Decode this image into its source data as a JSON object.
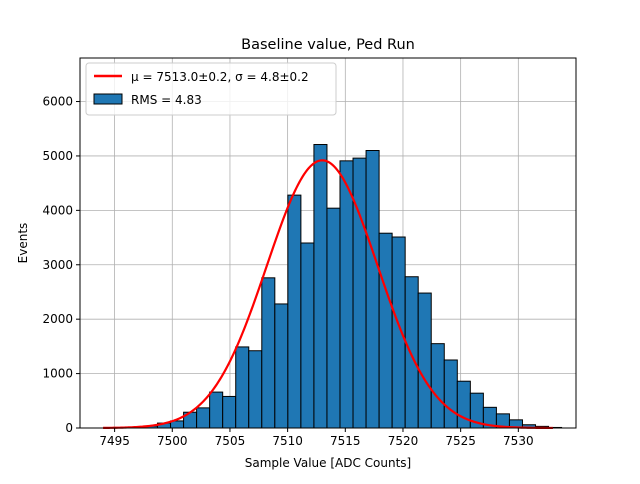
{
  "chart_data": {
    "type": "histogram",
    "title": "Baseline value, Ped Run",
    "xlabel": "Sample Value [ADC Counts]",
    "ylabel": "Events",
    "xlim": [
      7492.0,
      7535.0
    ],
    "ylim": [
      0,
      6800
    ],
    "x_ticks": [
      7495,
      7500,
      7505,
      7510,
      7515,
      7520,
      7525,
      7530
    ],
    "y_ticks": [
      0,
      1000,
      2000,
      3000,
      4000,
      5000,
      6000
    ],
    "grid": true,
    "legend_position": "top-left",
    "bin_edges": [
      7494.2,
      7495.33,
      7496.46,
      7497.59,
      7498.72,
      7499.85,
      7500.98,
      7502.11,
      7503.24,
      7504.37,
      7505.5,
      7506.63,
      7507.76,
      7508.89,
      7510.02,
      7511.15,
      7512.28,
      7513.41,
      7514.54,
      7515.67,
      7516.8,
      7517.93,
      7519.06,
      7520.19,
      7521.32,
      7522.45,
      7523.58,
      7524.71,
      7525.84,
      7526.97,
      7528.1,
      7529.23,
      7530.36,
      7531.49,
      7532.62,
      7533.75
    ],
    "counts": [
      5,
      8,
      15,
      35,
      90,
      130,
      290,
      370,
      660,
      580,
      1490,
      1420,
      2760,
      2280,
      4280,
      3400,
      5210,
      4040,
      4910,
      4960,
      5100,
      3580,
      3510,
      2780,
      2480,
      1550,
      1250,
      860,
      640,
      380,
      260,
      150,
      60,
      30,
      10
    ],
    "bar_color": "#1f77b4",
    "bar_edge_color": "#000000",
    "fit": {
      "mu": 7513.0,
      "sigma": 4.8,
      "amplitude": 4920,
      "x_range": [
        7494.0,
        7533.0
      ],
      "color": "#ff0000"
    },
    "legend": [
      {
        "kind": "line",
        "color": "#ff0000",
        "label": "μ = 7513.0±0.2, σ = 4.8±0.2"
      },
      {
        "kind": "patch",
        "color": "#1f77b4",
        "label": "RMS = 4.83"
      }
    ]
  }
}
